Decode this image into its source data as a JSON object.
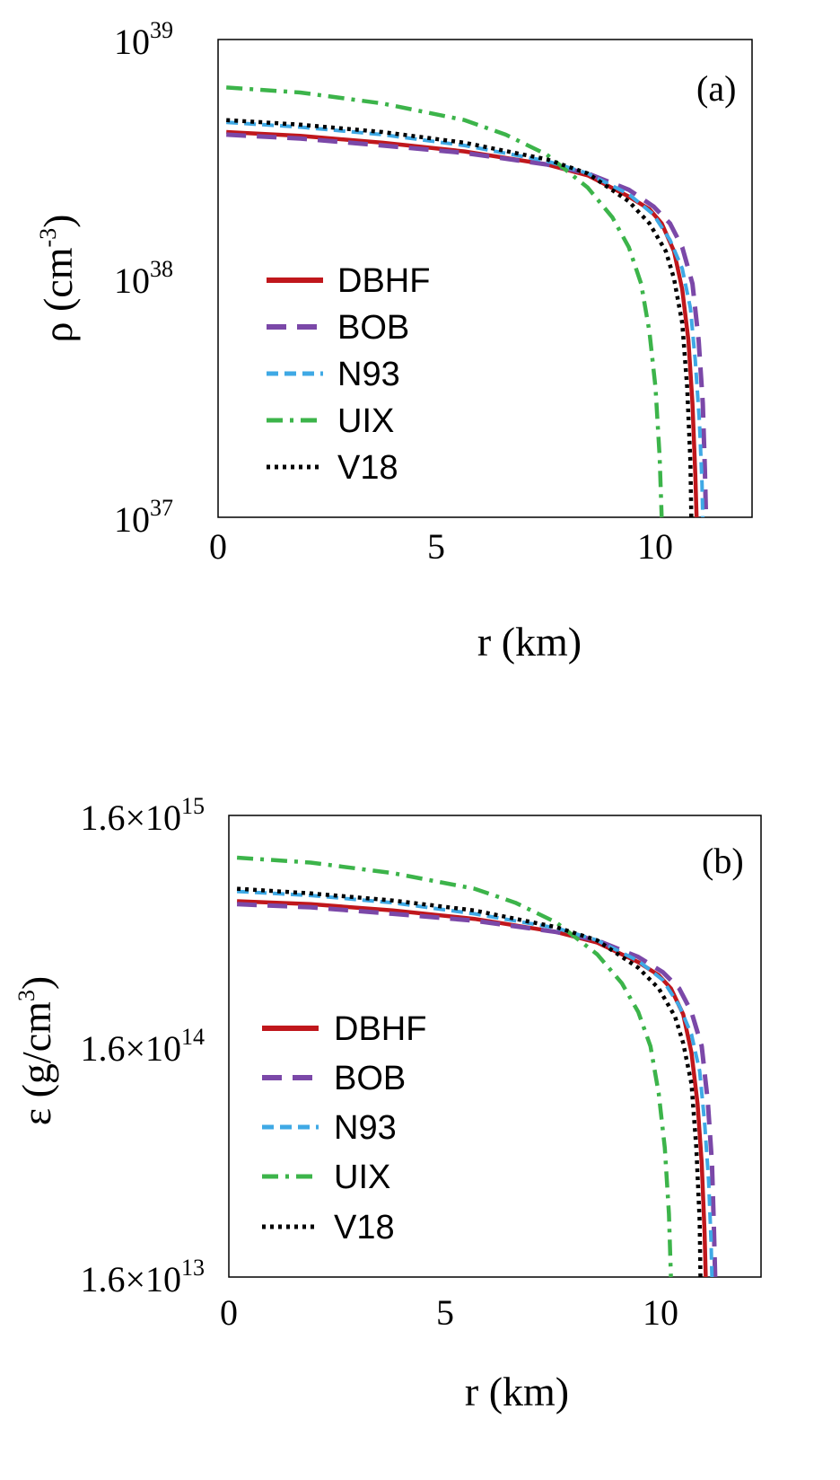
{
  "chart_data": [
    {
      "type": "line",
      "panel_label": "(a)",
      "xlabel": "r (km)",
      "ylabel": {
        "base": "ρ (cm",
        "sup": "-3",
        "close": ")"
      },
      "y_scale": "log",
      "xlim": [
        0,
        13
      ],
      "ylim": [
        1e+37,
        1e+39
      ],
      "x_ticks": [
        "0",
        "5",
        "10"
      ],
      "y_ticks": [
        {
          "base": "10",
          "exp": "37"
        },
        {
          "base": "10",
          "exp": "38"
        },
        {
          "base": "10",
          "exp": "39"
        }
      ],
      "legend_position": "center-left",
      "series": [
        {
          "name": "DBHF",
          "color": "#c0171c",
          "dash": "solid",
          "x": [
            0.2,
            2,
            4,
            6,
            8,
            9,
            10,
            10.5,
            10.8,
            11.1,
            11.3,
            11.45,
            11.55,
            11.62,
            11.65
          ],
          "y": [
            4.1e+38,
            3.95e+38,
            3.7e+38,
            3.4e+38,
            3e+38,
            2.7e+38,
            2.2e+38,
            1.95e+38,
            1.7e+38,
            1.3e+38,
            9e+37,
            5.5e+37,
            3e+37,
            1.5e+37,
            1e+37
          ]
        },
        {
          "name": "BOB",
          "color": "#7b48a8",
          "dash": "long-dash",
          "x": [
            0.2,
            2,
            4,
            6,
            8,
            9,
            10,
            10.6,
            11.0,
            11.3,
            11.55,
            11.7,
            11.8,
            11.85,
            11.88
          ],
          "y": [
            4e+38,
            3.85e+38,
            3.6e+38,
            3.35e+38,
            3e+38,
            2.75e+38,
            2.35e+38,
            2e+38,
            1.7e+38,
            1.35e+38,
            9.5e+37,
            5.5e+37,
            3e+37,
            1.6e+37,
            1e+37
          ]
        },
        {
          "name": "N93",
          "color": "#3fa9e5",
          "dash": "dash",
          "x": [
            0.2,
            2,
            4,
            6,
            8,
            9,
            10,
            10.6,
            11.0,
            11.3,
            11.5,
            11.62,
            11.72,
            11.78,
            11.8
          ],
          "y": [
            4.5e+38,
            4.3e+38,
            4e+38,
            3.6e+38,
            3.1e+38,
            2.75e+38,
            2.25e+38,
            1.85e+38,
            1.45e+38,
            1.1e+38,
            7.5e+37,
            4.5e+37,
            2.5e+37,
            1.4e+37,
            1e+37
          ]
        },
        {
          "name": "UIX",
          "color": "#3cb44a",
          "dash": "dash-dot",
          "x": [
            0.2,
            2,
            4,
            6,
            7,
            8,
            9,
            9.6,
            10.0,
            10.3,
            10.5,
            10.65,
            10.75,
            10.8
          ],
          "y": [
            6.3e+38,
            6e+38,
            5.4e+38,
            4.6e+38,
            4e+38,
            3.3e+38,
            2.4e+38,
            1.8e+38,
            1.35e+38,
            9.5e+37,
            6e+37,
            3.5e+37,
            1.8e+37,
            1e+37
          ]
        },
        {
          "name": "V18",
          "color": "#000000",
          "dash": "dot",
          "x": [
            0.2,
            2,
            4,
            6,
            8,
            9,
            10,
            10.5,
            10.9,
            11.1,
            11.3,
            11.42,
            11.5,
            11.52
          ],
          "y": [
            4.6e+38,
            4.4e+38,
            4.1e+38,
            3.7e+38,
            3.15e+38,
            2.75e+38,
            2.1e+38,
            1.7e+38,
            1.3e+38,
            1e+38,
            6.5e+37,
            3.5e+37,
            1.7e+37,
            1e+37
          ]
        }
      ]
    },
    {
      "type": "line",
      "panel_label": "(b)",
      "xlabel": "r (km)",
      "ylabel": {
        "base": "ε (g/cm",
        "sup": "3",
        "close": ")"
      },
      "y_scale": "log",
      "xlim": [
        0,
        13
      ],
      "ylim": [
        16000000000000.0,
        1600000000000000.0
      ],
      "x_ticks": [
        "0",
        "5",
        "10"
      ],
      "y_ticks": [
        {
          "base": "1.6×10",
          "exp": "13"
        },
        {
          "base": "1.6×10",
          "exp": "14"
        },
        {
          "base": "1.6×10",
          "exp": "15"
        }
      ],
      "legend_position": "center-left",
      "series": [
        {
          "name": "DBHF",
          "color": "#c0171c",
          "dash": "solid",
          "x": [
            0.2,
            2,
            4,
            6,
            8,
            9,
            10,
            10.5,
            10.8,
            11.1,
            11.3,
            11.45,
            11.55,
            11.62,
            11.65
          ],
          "y": [
            680000000000000.0,
            660000000000000.0,
            620000000000000.0,
            570000000000000.0,
            500000000000000.0,
            450000000000000.0,
            370000000000000.0,
            325000000000000.0,
            285000000000000.0,
            220000000000000.0,
            150000000000000.0,
            90000000000000.0,
            50000000000000.0,
            25000000000000.0,
            16000000000000.0
          ]
        },
        {
          "name": "BOB",
          "color": "#7b48a8",
          "dash": "long-dash",
          "x": [
            0.2,
            2,
            4,
            6,
            8,
            9,
            10,
            10.6,
            11.0,
            11.3,
            11.55,
            11.7,
            11.8,
            11.85,
            11.88
          ],
          "y": [
            660000000000000.0,
            640000000000000.0,
            600000000000000.0,
            560000000000000.0,
            500000000000000.0,
            460000000000000.0,
            390000000000000.0,
            335000000000000.0,
            285000000000000.0,
            225000000000000.0,
            160000000000000.0,
            92000000000000.0,
            50000000000000.0,
            26000000000000.0,
            16000000000000.0
          ]
        },
        {
          "name": "N93",
          "color": "#3fa9e5",
          "dash": "dash",
          "x": [
            0.2,
            2,
            4,
            6,
            8,
            9,
            10,
            10.6,
            11.0,
            11.3,
            11.5,
            11.62,
            11.72,
            11.78,
            11.8
          ],
          "y": [
            750000000000000.0,
            720000000000000.0,
            670000000000000.0,
            600000000000000.0,
            520000000000000.0,
            460000000000000.0,
            375000000000000.0,
            310000000000000.0,
            240000000000000.0,
            180000000000000.0,
            125000000000000.0,
            75000000000000.0,
            42000000000000.0,
            23000000000000.0,
            16000000000000.0
          ]
        },
        {
          "name": "UIX",
          "color": "#3cb44a",
          "dash": "dash-dot",
          "x": [
            0.2,
            2,
            4,
            6,
            7,
            8,
            9,
            9.6,
            10.0,
            10.3,
            10.5,
            10.65,
            10.75,
            10.8
          ],
          "y": [
            1050000000000000.0,
            1000000000000000.0,
            900000000000000.0,
            770000000000000.0,
            670000000000000.0,
            550000000000000.0,
            400000000000000.0,
            300000000000000.0,
            225000000000000.0,
            160000000000000.0,
            100000000000000.0,
            58000000000000.0,
            30000000000000.0,
            16000000000000.0
          ]
        },
        {
          "name": "V18",
          "color": "#000000",
          "dash": "dot",
          "x": [
            0.2,
            2,
            4,
            6,
            8,
            9,
            10,
            10.5,
            10.9,
            11.1,
            11.3,
            11.42,
            11.5,
            11.52
          ],
          "y": [
            770000000000000.0,
            735000000000000.0,
            685000000000000.0,
            620000000000000.0,
            525000000000000.0,
            460000000000000.0,
            350000000000000.0,
            285000000000000.0,
            215000000000000.0,
            165000000000000.0,
            110000000000000.0,
            58000000000000.0,
            28000000000000.0,
            16000000000000.0
          ]
        }
      ]
    }
  ]
}
